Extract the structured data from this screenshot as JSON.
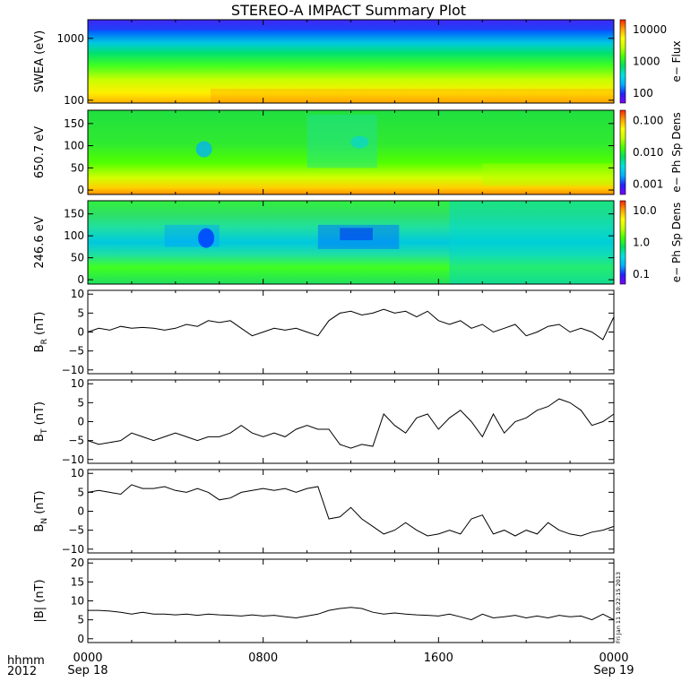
{
  "title": "STEREO-A IMPACT Summary Plot",
  "footer": {
    "hhmm_label": "hhmm",
    "year_label": "2012",
    "stamp": "Fri Jan 11 10:22:15 2013"
  },
  "time_axis": {
    "ticks": [
      {
        "hours": 0,
        "label": "0000",
        "sub": "Sep 18"
      },
      {
        "hours": 8,
        "label": "0800",
        "sub": ""
      },
      {
        "hours": 16,
        "label": "1600",
        "sub": ""
      },
      {
        "hours": 24,
        "label": "0000",
        "sub": "Sep 19"
      }
    ],
    "range_hours": [
      0,
      24
    ]
  },
  "colors": {
    "colorbar": [
      "#7f00ff",
      "#2020ff",
      "#00b0ff",
      "#00e0e0",
      "#00e060",
      "#40ff00",
      "#c0ff00",
      "#ffff00",
      "#ffa000",
      "#ff2000"
    ]
  },
  "chart_data": [
    {
      "type": "heatmap",
      "id": "swea",
      "ylabel": "SWEA (eV)",
      "yscale": "log",
      "ylim": [
        90,
        2000
      ],
      "yticks": [
        {
          "v": 100,
          "label": "100"
        },
        {
          "v": 1000,
          "label": "1000"
        }
      ],
      "colorbar": {
        "label": "e− Flux",
        "scale": "log",
        "ticks": [
          "100",
          "1000",
          "10000"
        ]
      }
    },
    {
      "type": "heatmap",
      "id": "pad650",
      "ylabel": "650.7 eV",
      "ylim": [
        -10,
        180
      ],
      "yticks": [
        {
          "v": 0,
          "label": "0"
        },
        {
          "v": 50,
          "label": "50"
        },
        {
          "v": 100,
          "label": "100"
        },
        {
          "v": 150,
          "label": "150"
        }
      ],
      "colorbar": {
        "label": "e− Ph Sp Dens",
        "scale": "log",
        "ticks": [
          "0.001",
          "0.010",
          "0.100"
        ]
      }
    },
    {
      "type": "heatmap",
      "id": "pad246",
      "ylabel": "246.6 eV",
      "ylim": [
        -10,
        180
      ],
      "yticks": [
        {
          "v": 0,
          "label": "0"
        },
        {
          "v": 50,
          "label": "50"
        },
        {
          "v": 100,
          "label": "100"
        },
        {
          "v": 150,
          "label": "150"
        }
      ],
      "colorbar": {
        "label": "e− Ph Sp Dens",
        "scale": "log",
        "ticks": [
          "0.1",
          "1.0",
          "10.0"
        ]
      }
    },
    {
      "type": "line",
      "id": "br",
      "ylabel": "B",
      "ylabel_sub": "R",
      "ylabel_unit": " (nT)",
      "ylim": [
        -11,
        11
      ],
      "yticks": [
        {
          "v": -10,
          "label": "−10"
        },
        {
          "v": -5,
          "label": "−5"
        },
        {
          "v": 0,
          "label": "0"
        },
        {
          "v": 5,
          "label": "5"
        },
        {
          "v": 10,
          "label": "10"
        }
      ],
      "x": [
        0,
        0.5,
        1,
        1.5,
        2,
        2.5,
        3,
        3.5,
        4,
        4.5,
        5,
        5.5,
        6,
        6.5,
        7,
        7.5,
        8,
        8.5,
        9,
        9.5,
        10,
        10.5,
        11,
        11.5,
        12,
        12.5,
        13,
        13.5,
        14,
        14.5,
        15,
        15.5,
        16,
        16.5,
        17,
        17.5,
        18,
        18.5,
        19,
        19.5,
        20,
        20.5,
        21,
        21.5,
        22,
        22.5,
        23,
        23.5,
        24
      ],
      "values": [
        0,
        1,
        0.5,
        1.5,
        1,
        1.2,
        1,
        0.5,
        1,
        2,
        1.5,
        3,
        2.5,
        3,
        1,
        -1,
        0,
        1,
        0.5,
        1,
        0,
        -1,
        3,
        5,
        5.5,
        4.5,
        5,
        6,
        5,
        5.5,
        4,
        5.5,
        3,
        2,
        3,
        1,
        2,
        0,
        1,
        2,
        -1,
        0,
        1.5,
        2,
        0,
        1,
        0,
        -2,
        4
      ]
    },
    {
      "type": "line",
      "id": "bt",
      "ylabel": "B",
      "ylabel_sub": "T",
      "ylabel_unit": " (nT)",
      "ylim": [
        -11,
        11
      ],
      "yticks": [
        {
          "v": -10,
          "label": "−10"
        },
        {
          "v": -5,
          "label": "−5"
        },
        {
          "v": 0,
          "label": "0"
        },
        {
          "v": 5,
          "label": "5"
        },
        {
          "v": 10,
          "label": "10"
        }
      ],
      "x": [
        0,
        0.5,
        1,
        1.5,
        2,
        2.5,
        3,
        3.5,
        4,
        4.5,
        5,
        5.5,
        6,
        6.5,
        7,
        7.5,
        8,
        8.5,
        9,
        9.5,
        10,
        10.5,
        11,
        11.5,
        12,
        12.5,
        13,
        13.5,
        14,
        14.5,
        15,
        15.5,
        16,
        16.5,
        17,
        17.5,
        18,
        18.5,
        19,
        19.5,
        20,
        20.5,
        21,
        21.5,
        22,
        22.5,
        23,
        23.5,
        24
      ],
      "values": [
        -5,
        -6,
        -5.5,
        -5,
        -3,
        -4,
        -5,
        -4,
        -3,
        -4,
        -5,
        -4,
        -4,
        -3,
        -1,
        -3,
        -4,
        -3,
        -4,
        -2,
        -1,
        -2,
        -2,
        -6,
        -7,
        -6,
        -6.5,
        2,
        -1,
        -3,
        1,
        2,
        -2,
        1,
        3,
        0,
        -4,
        2,
        -3,
        0,
        1,
        3,
        4,
        6,
        5,
        3,
        -1,
        0,
        2
      ]
    },
    {
      "type": "line",
      "id": "bn",
      "ylabel": "B",
      "ylabel_sub": "N",
      "ylabel_unit": " (nT)",
      "ylim": [
        -11,
        11
      ],
      "yticks": [
        {
          "v": -10,
          "label": "−10"
        },
        {
          "v": -5,
          "label": "−5"
        },
        {
          "v": 0,
          "label": "0"
        },
        {
          "v": 5,
          "label": "5"
        },
        {
          "v": 10,
          "label": "10"
        }
      ],
      "x": [
        0,
        0.5,
        1,
        1.5,
        2,
        2.5,
        3,
        3.5,
        4,
        4.5,
        5,
        5.5,
        6,
        6.5,
        7,
        7.5,
        8,
        8.5,
        9,
        9.5,
        10,
        10.5,
        11,
        11.5,
        12,
        12.5,
        13,
        13.5,
        14,
        14.5,
        15,
        15.5,
        16,
        16.5,
        17,
        17.5,
        18,
        18.5,
        19,
        19.5,
        20,
        20.5,
        21,
        21.5,
        22,
        22.5,
        23,
        23.5,
        24
      ],
      "values": [
        5,
        5.5,
        5,
        4.5,
        7,
        6,
        6,
        6.5,
        5.5,
        5,
        6,
        5,
        3,
        3.5,
        5,
        5.5,
        6,
        5.5,
        6,
        5,
        6,
        6.5,
        -2,
        -1.5,
        1,
        -2,
        -4,
        -6,
        -5,
        -3,
        -5,
        -6.5,
        -6,
        -5,
        -6,
        -2,
        -1,
        -6,
        -5,
        -6.5,
        -5,
        -6,
        -3,
        -5,
        -6,
        -6.5,
        -5.5,
        -5,
        -4
      ]
    },
    {
      "type": "line",
      "id": "bmag",
      "ylabel": "|B| (nT)",
      "ylim": [
        -1,
        21
      ],
      "yticks": [
        {
          "v": 0,
          "label": "0"
        },
        {
          "v": 5,
          "label": "5"
        },
        {
          "v": 10,
          "label": "10"
        },
        {
          "v": 15,
          "label": "15"
        },
        {
          "v": 20,
          "label": "20"
        }
      ],
      "x": [
        0,
        0.5,
        1,
        1.5,
        2,
        2.5,
        3,
        3.5,
        4,
        4.5,
        5,
        5.5,
        6,
        6.5,
        7,
        7.5,
        8,
        8.5,
        9,
        9.5,
        10,
        10.5,
        11,
        11.5,
        12,
        12.5,
        13,
        13.5,
        14,
        14.5,
        15,
        15.5,
        16,
        16.5,
        17,
        17.5,
        18,
        18.5,
        19,
        19.5,
        20,
        20.5,
        21,
        21.5,
        22,
        22.5,
        23,
        23.5,
        24
      ],
      "values": [
        7.5,
        7.5,
        7.3,
        7,
        6.5,
        7,
        6.5,
        6.5,
        6.3,
        6.5,
        6.2,
        6.5,
        6.3,
        6.2,
        6,
        6.3,
        6,
        6.2,
        5.8,
        5.5,
        6,
        6.5,
        7.5,
        8,
        8.3,
        8,
        7,
        6.5,
        6.8,
        6.5,
        6.3,
        6.2,
        6,
        6.5,
        5.8,
        5,
        6.5,
        5.5,
        5.8,
        6.2,
        5.5,
        6,
        5.5,
        6.2,
        5.8,
        6,
        5,
        6.5,
        5
      ]
    }
  ]
}
